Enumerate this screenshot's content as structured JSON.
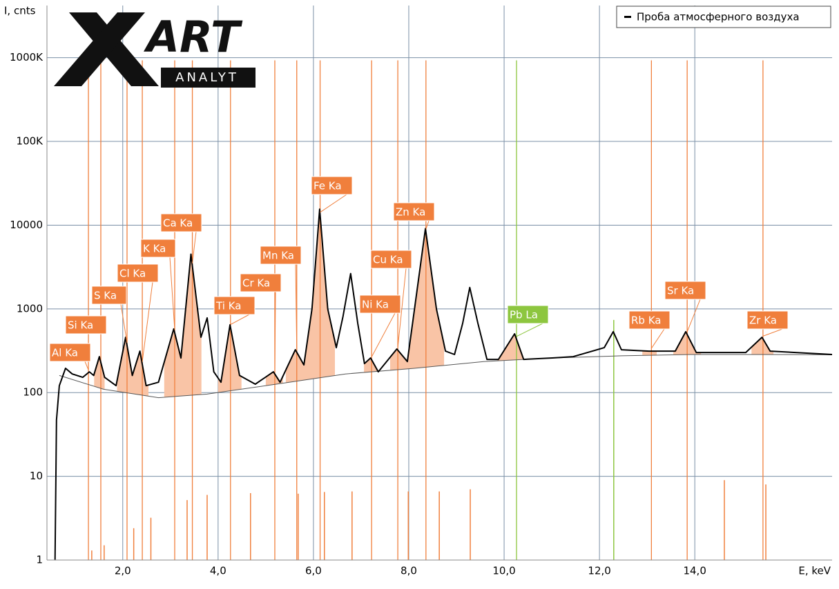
{
  "chart_data": {
    "type": "line",
    "log_scale_y": true,
    "grid": true,
    "y_label": "I, cnts",
    "x_label": "E, keV",
    "logo": {
      "mark": "ART",
      "text": "ANALYT"
    },
    "xlim": [
      0.41,
      16.88
    ],
    "ylim": [
      1,
      4200000
    ],
    "xticks": [
      {
        "value": 2,
        "label": "2,0"
      },
      {
        "value": 4,
        "label": "4,0"
      },
      {
        "value": 6,
        "label": "6,0"
      },
      {
        "value": 8,
        "label": "8,0"
      },
      {
        "value": 10,
        "label": "10,0"
      },
      {
        "value": 12,
        "label": "12,0"
      },
      {
        "value": 14,
        "label": "14,0"
      }
    ],
    "yticks": [
      1,
      10,
      100,
      1000,
      10000,
      {
        "value": 100000,
        "label": "100K"
      },
      {
        "value": 1000000,
        "label": "1000K"
      }
    ],
    "series": [
      {
        "name": "Проба атмосферного воздуха",
        "color": "#000000",
        "x": [
          0.58,
          0.61,
          0.67,
          0.8,
          0.94,
          1.16,
          1.3,
          1.39,
          1.51,
          1.62,
          1.86,
          2.06,
          2.2,
          2.36,
          2.49,
          2.75,
          3.07,
          3.22,
          3.43,
          3.64,
          3.77,
          3.91,
          4.06,
          4.25,
          4.45,
          4.78,
          5.16,
          5.3,
          5.62,
          5.8,
          5.97,
          6.13,
          6.3,
          6.48,
          6.62,
          6.78,
          6.93,
          7.07,
          7.2,
          7.36,
          7.75,
          7.97,
          8.12,
          8.35,
          8.58,
          8.77,
          8.96,
          9.13,
          9.28,
          9.45,
          9.64,
          9.88,
          10.22,
          10.41,
          11.01,
          11.45,
          12.1,
          12.29,
          12.46,
          13.04,
          13.59,
          13.81,
          14.03,
          15.07,
          15.41,
          15.58,
          16.88
        ],
        "values": [
          1,
          47,
          121,
          195,
          167,
          152,
          177,
          160,
          269,
          152,
          121,
          458,
          160,
          313,
          121,
          133,
          576,
          259,
          4500,
          458,
          781,
          177,
          133,
          645,
          160,
          126,
          177,
          133,
          325,
          214,
          1000,
          15500,
          1000,
          344,
          811,
          2640,
          670,
          222,
          259,
          177,
          332,
          235,
          1000,
          9100,
          1000,
          313,
          285,
          670,
          1800,
          670,
          249,
          249,
          504,
          249,
          259,
          269,
          344,
          534,
          325,
          313,
          313,
          534,
          301,
          301,
          458,
          313,
          285
        ]
      }
    ],
    "background": {
      "color": "#555555",
      "x": [
        0.67,
        0.8,
        1.59,
        2.75,
        3.77,
        5.22,
        6.67,
        8.12,
        9.57,
        11.01,
        12.46,
        13.91,
        15.36,
        16.88
      ],
      "values": [
        160,
        152,
        110,
        87,
        96,
        126,
        167,
        195,
        235,
        259,
        275,
        285,
        285,
        283
      ]
    },
    "peak_regions": [
      [
        1.4,
        1.62
      ],
      [
        1.88,
        2.54
      ],
      [
        2.87,
        3.65
      ],
      [
        4.0,
        4.49
      ],
      [
        5.0,
        5.36
      ],
      [
        5.42,
        6.45
      ],
      [
        7.06,
        7.36
      ],
      [
        7.61,
        8.74
      ],
      [
        9.86,
        10.51
      ],
      [
        12.9,
        13.2
      ],
      [
        13.55,
        14.13
      ],
      [
        15.19,
        15.65
      ]
    ],
    "peaks": [
      {
        "label": "Al Ka",
        "energy": 1.28,
        "intensity": 930000,
        "color": "#f07f3c"
      },
      {
        "label": "Si Ka",
        "energy": 1.54,
        "intensity": 930000,
        "color": "#f07f3c"
      },
      {
        "label": "S Ka",
        "energy": 2.09,
        "intensity": 930000,
        "color": "#f07f3c"
      },
      {
        "label": "Cl Ka",
        "energy": 2.41,
        "intensity": 930000,
        "color": "#f07f3c"
      },
      {
        "label": "K Ka",
        "energy": 3.09,
        "intensity": 930000,
        "color": "#f07f3c"
      },
      {
        "label": "Ca Ka",
        "energy": 3.46,
        "intensity": 930000,
        "color": "#f07f3c"
      },
      {
        "label": "Ti Ka",
        "energy": 4.26,
        "intensity": 930000,
        "color": "#f07f3c"
      },
      {
        "label": "Cr Ka",
        "energy": 5.19,
        "intensity": 930000,
        "color": "#f07f3c"
      },
      {
        "label": "Mn Ka",
        "energy": 5.65,
        "intensity": 930000,
        "color": "#f07f3c"
      },
      {
        "label": "Fe Ka",
        "energy": 6.14,
        "intensity": 930000,
        "color": "#f07f3c"
      },
      {
        "label": "Ni Ka",
        "energy": 7.22,
        "intensity": 930000,
        "color": "#f07f3c"
      },
      {
        "label": "Cu Ka",
        "energy": 7.77,
        "intensity": 930000,
        "color": "#f07f3c"
      },
      {
        "label": "Zn Ka",
        "energy": 8.36,
        "intensity": 930000,
        "color": "#f07f3c"
      },
      {
        "label": "Pb La",
        "energy": 10.26,
        "intensity": 930000,
        "color": "#8dc63f"
      },
      {
        "label": "Rb Ka",
        "energy": 13.09,
        "intensity": 930000,
        "color": "#f07f3c"
      },
      {
        "label": "Sr Ka",
        "energy": 13.84,
        "intensity": 930000,
        "color": "#f07f3c"
      },
      {
        "label": "Zr Ka",
        "energy": 15.43,
        "intensity": 930000,
        "color": "#f07f3c"
      }
    ],
    "minor_lines": {
      "color": "#f07f3c",
      "green": "#8dc63f",
      "energies": [
        1.35,
        1.61,
        2.23,
        2.59,
        3.35,
        3.77,
        4.68,
        5.68,
        6.23,
        6.81,
        7.99,
        8.64,
        9.29,
        14.62,
        15.49
      ],
      "values": [
        1.3,
        1.5,
        2.4,
        3.2,
        5.2,
        6,
        6.3,
        6.2,
        6.5,
        6.6,
        6.6,
        6.6,
        7,
        9,
        8
      ],
      "green_energies": [
        12.3
      ],
      "green_values": [
        738
      ]
    }
  }
}
